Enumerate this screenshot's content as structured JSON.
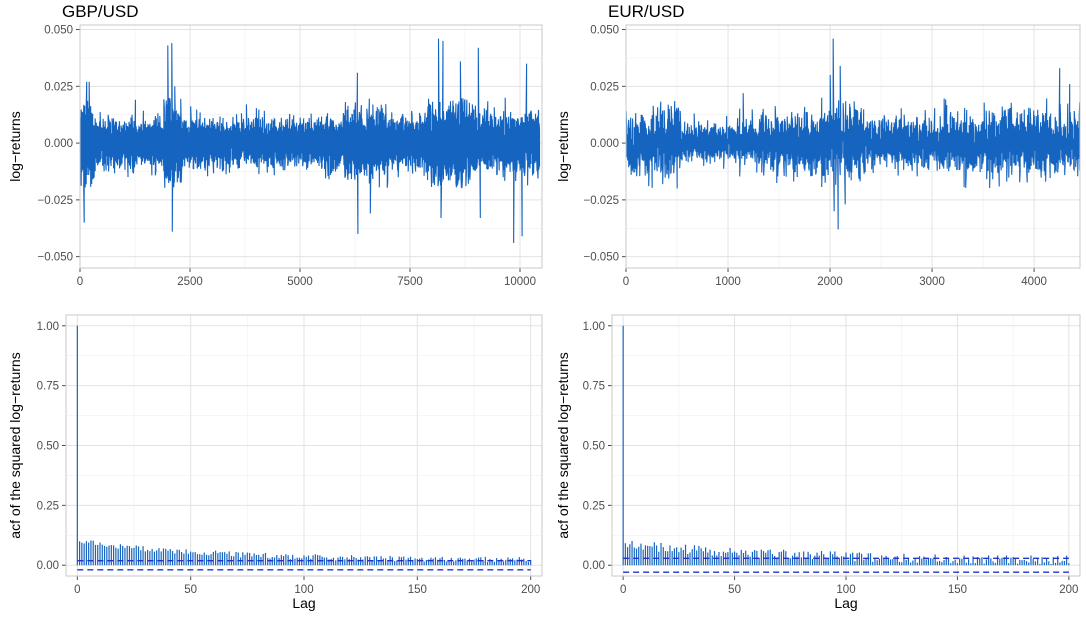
{
  "colors": {
    "series": "#1565c0",
    "conf_band": "#2233cc"
  },
  "chart_data": [
    {
      "type": "line",
      "title": "GBP/USD",
      "xlabel": "",
      "ylabel": "log−returns",
      "xlim": [
        0,
        10500
      ],
      "ylim": [
        -0.055,
        0.052
      ],
      "x_ticks": [
        0,
        2500,
        5000,
        7500,
        10000
      ],
      "y_ticks": [
        -0.05,
        -0.025,
        0,
        0.025,
        0.05
      ],
      "x_tick_labels": [
        "0",
        "2500",
        "5000",
        "7500",
        "10000"
      ],
      "y_tick_labels": [
        "−0.050",
        "−0.025",
        "0.000",
        "0.025",
        "0.050"
      ],
      "n_obs": 10450,
      "base_volatility": 0.0045,
      "volatility_regimes": [
        {
          "from": 0,
          "to": 300,
          "level": 0.0075
        },
        {
          "from": 300,
          "to": 1900,
          "level": 0.0045
        },
        {
          "from": 1900,
          "to": 2300,
          "level": 0.0085
        },
        {
          "from": 2300,
          "to": 6000,
          "level": 0.0045
        },
        {
          "from": 6000,
          "to": 7000,
          "level": 0.0065
        },
        {
          "from": 7000,
          "to": 7900,
          "level": 0.005
        },
        {
          "from": 7900,
          "to": 9000,
          "level": 0.0075
        },
        {
          "from": 9000,
          "to": 10450,
          "level": 0.0055
        }
      ],
      "spikes": [
        {
          "x": 100,
          "y": -0.035
        },
        {
          "x": 150,
          "y": 0.027
        },
        {
          "x": 210,
          "y": 0.027
        },
        {
          "x": 2000,
          "y": 0.043
        },
        {
          "x": 2080,
          "y": 0.044
        },
        {
          "x": 2100,
          "y": -0.039
        },
        {
          "x": 2150,
          "y": 0.025
        },
        {
          "x": 6300,
          "y": 0.031
        },
        {
          "x": 6320,
          "y": -0.04
        },
        {
          "x": 6600,
          "y": -0.031
        },
        {
          "x": 8150,
          "y": 0.046
        },
        {
          "x": 8250,
          "y": 0.045
        },
        {
          "x": 8200,
          "y": -0.033
        },
        {
          "x": 8650,
          "y": 0.036
        },
        {
          "x": 9050,
          "y": 0.042
        },
        {
          "x": 9100,
          "y": -0.033
        },
        {
          "x": 9850,
          "y": -0.044
        },
        {
          "x": 10050,
          "y": -0.041
        },
        {
          "x": 10150,
          "y": 0.035
        },
        {
          "x": 10400,
          "y": 0.01
        }
      ]
    },
    {
      "type": "line",
      "title": "EUR/USD",
      "xlabel": "",
      "ylabel": "log−returns",
      "xlim": [
        0,
        4450
      ],
      "ylim": [
        -0.055,
        0.052
      ],
      "x_ticks": [
        0,
        1000,
        2000,
        3000,
        4000
      ],
      "y_ticks": [
        -0.05,
        -0.025,
        0,
        0.025,
        0.05
      ],
      "x_tick_labels": [
        "0",
        "1000",
        "2000",
        "3000",
        "4000"
      ],
      "y_tick_labels": [
        "−0.050",
        "−0.025",
        "0.000",
        "0.025",
        "0.050"
      ],
      "n_obs": 4450,
      "base_volatility": 0.0045,
      "volatility_regimes": [
        {
          "from": 0,
          "to": 300,
          "level": 0.006
        },
        {
          "from": 300,
          "to": 550,
          "level": 0.0075
        },
        {
          "from": 550,
          "to": 1300,
          "level": 0.004
        },
        {
          "from": 1300,
          "to": 1900,
          "level": 0.006
        },
        {
          "from": 1900,
          "to": 2300,
          "level": 0.008
        },
        {
          "from": 2300,
          "to": 3100,
          "level": 0.0055
        },
        {
          "from": 3100,
          "to": 4450,
          "level": 0.0065
        }
      ],
      "spikes": [
        {
          "x": 50,
          "y": -0.014
        },
        {
          "x": 2030,
          "y": 0.046
        },
        {
          "x": 2040,
          "y": -0.03
        },
        {
          "x": 2080,
          "y": -0.038
        },
        {
          "x": 2100,
          "y": 0.034
        },
        {
          "x": 2150,
          "y": -0.027
        },
        {
          "x": 2000,
          "y": 0.03
        },
        {
          "x": 4250,
          "y": 0.033
        },
        {
          "x": 4350,
          "y": 0.026
        },
        {
          "x": 1150,
          "y": 0.022
        },
        {
          "x": 500,
          "y": -0.02
        }
      ]
    },
    {
      "type": "bar",
      "title": "",
      "xlabel": "Lag",
      "ylabel": "acf of the squared log−returns",
      "xlim": [
        -5,
        205
      ],
      "ylim": [
        -0.045,
        1.045
      ],
      "x_ticks": [
        0,
        50,
        100,
        150,
        200
      ],
      "y_ticks": [
        0,
        0.25,
        0.5,
        0.75,
        1
      ],
      "x_tick_labels": [
        "0",
        "50",
        "100",
        "150",
        "200"
      ],
      "y_tick_labels": [
        "0.00",
        "0.25",
        "0.50",
        "0.75",
        "1.00"
      ],
      "conf_band": 0.019,
      "lag0": 1.0,
      "decay": {
        "start": 0.1,
        "end": 0.02,
        "tau": 60,
        "noise": 0.012
      },
      "max_lag": 200
    },
    {
      "type": "bar",
      "title": "",
      "xlabel": "Lag",
      "ylabel": "acf of the squared log−returns",
      "xlim": [
        -5,
        205
      ],
      "ylim": [
        -0.045,
        1.045
      ],
      "x_ticks": [
        0,
        50,
        100,
        150,
        200
      ],
      "y_ticks": [
        0,
        0.25,
        0.5,
        0.75,
        1
      ],
      "x_tick_labels": [
        "0",
        "50",
        "100",
        "150",
        "200"
      ],
      "y_tick_labels": [
        "0.00",
        "0.25",
        "0.50",
        "0.75",
        "1.00"
      ],
      "conf_band": 0.029,
      "lag0": 1.0,
      "decay": {
        "start": 0.09,
        "end": 0.02,
        "tau": 70,
        "noise": 0.02
      },
      "max_lag": 200
    }
  ]
}
